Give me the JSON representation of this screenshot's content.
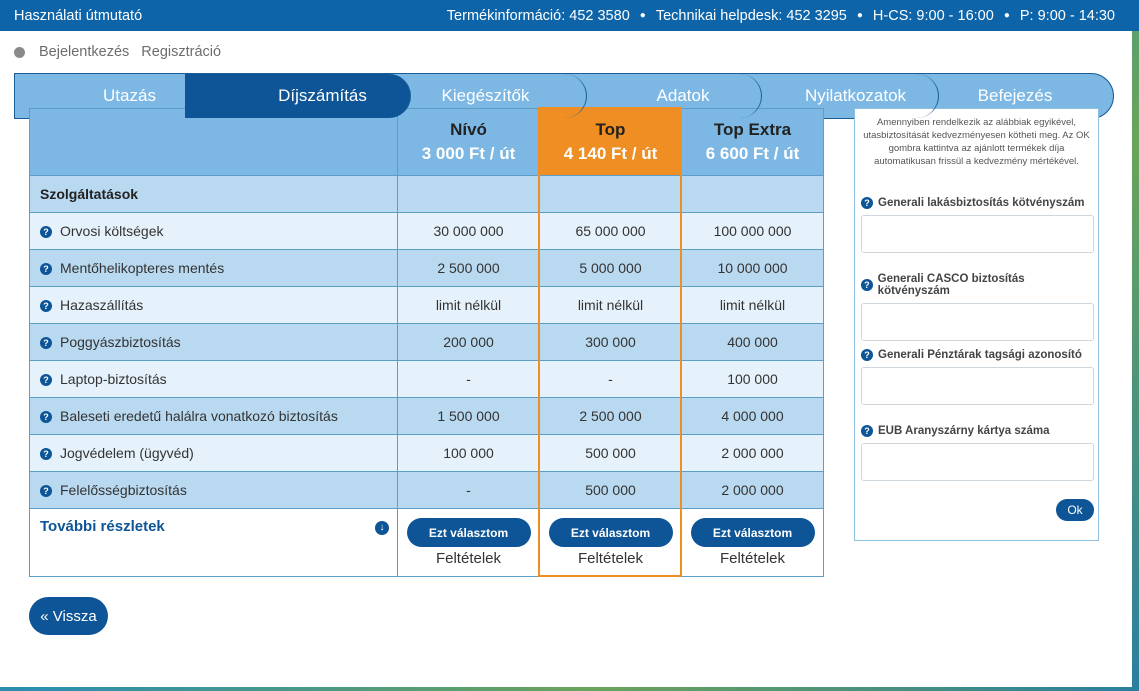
{
  "topbar": {
    "title": "Használati útmutató",
    "items": [
      "Termékinformáció: 452 3580",
      "Technikai helpdesk: 452 3295",
      "H-CS: 9:00 - 16:00",
      "P: 9:00 - 14:30"
    ]
  },
  "auth": {
    "login": "Bejelentkezés",
    "register": "Regisztráció"
  },
  "steps": [
    "Utazás",
    "Díjszámítás",
    "Kiegészítők",
    "Adatok",
    "Nyilatkozatok",
    "Befejezés"
  ],
  "active_step": "Díjszámítás",
  "plans": [
    {
      "name": "Nívó",
      "price": "3 000 Ft / út"
    },
    {
      "name": "Top",
      "price": "4 140 Ft / út"
    },
    {
      "name": "Top Extra",
      "price": "6 600 Ft / út"
    }
  ],
  "services_header": "Szolgáltatások",
  "rows": [
    {
      "label": "Orvosi költségek",
      "values": [
        "30 000 000",
        "65 000 000",
        "100 000 000"
      ]
    },
    {
      "label": "Mentőhelikopteres mentés",
      "values": [
        "2 500 000",
        "5 000 000",
        "10 000 000"
      ]
    },
    {
      "label": "Hazaszállítás",
      "values": [
        "limit nélkül",
        "limit nélkül",
        "limit nélkül"
      ]
    },
    {
      "label": "Poggyászbiztosítás",
      "values": [
        "200 000",
        "300 000",
        "400 000"
      ]
    },
    {
      "label": "Laptop-biztosítás",
      "values": [
        "-",
        "-",
        "100 000"
      ]
    },
    {
      "label": "Baleseti eredetű halálra vonatkozó biztosítás",
      "values": [
        "1 500 000",
        "2 500 000",
        "4 000 000"
      ]
    },
    {
      "label": "Jogvédelem (ügyvéd)",
      "values": [
        "100 000",
        "500 000",
        "2 000 000"
      ]
    },
    {
      "label": "Felelősségbiztosítás",
      "values": [
        "-",
        "500 000",
        "2 000 000"
      ]
    }
  ],
  "more_details": "További részletek",
  "choose_label": "Ezt választom",
  "conditions_label": "Feltételek",
  "back_label": "« Vissza",
  "side": {
    "intro": "Amennyiben rendelkezik az alábbiak egyikével, utasbiztosítását kedvezményesen kötheti meg. Az OK gombra kattintva az ajánlott termékek díja automatikusan frissül a kedvezmény mértékével.",
    "fields": [
      "Generali lakásbiztosítás kötvényszám",
      "Generali CASCO biztosítás kötvényszám",
      "Generali Pénztárak tagsági azonosító",
      "EUB Aranyszárny kártya száma"
    ],
    "ok_label": "Ok"
  },
  "colors": {
    "brand": "#0d5596",
    "topbar": "#0d64a8",
    "highlight": "#ef8f23",
    "header_bg": "#7db8e4"
  }
}
